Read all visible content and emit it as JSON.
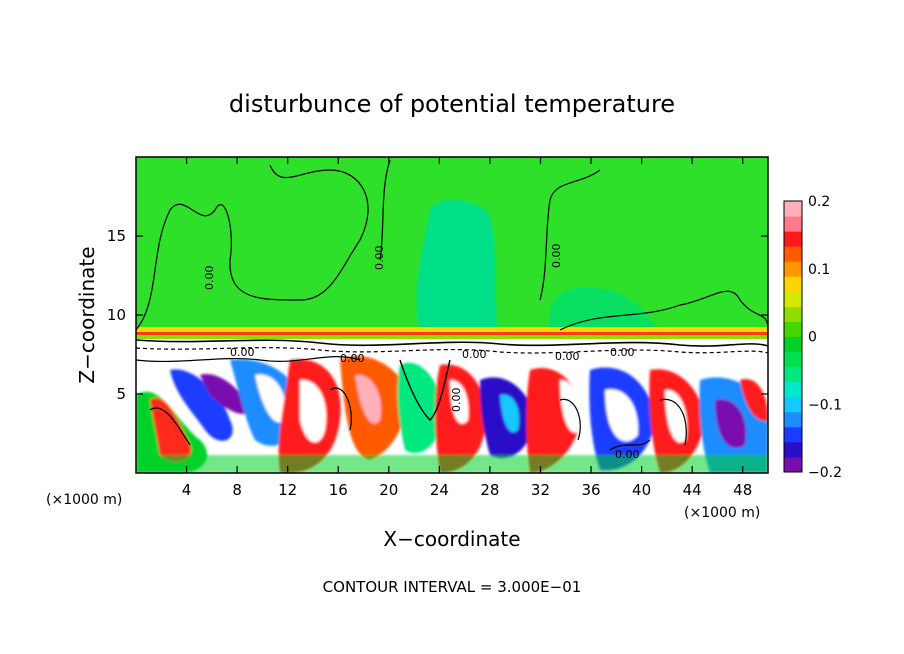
{
  "chart_data": {
    "type": "heatmap",
    "title": "disturbunce of potential temperature",
    "xlabel": "X−coordinate",
    "ylabel": "Z−coordinate",
    "x_unit": "(×1000 m)",
    "z_unit": "(×1000 m)",
    "xlim": [
      0,
      50
    ],
    "ylim": [
      0,
      20
    ],
    "x_ticks": [
      4,
      8,
      12,
      16,
      20,
      24,
      28,
      32,
      36,
      40,
      44,
      48
    ],
    "y_ticks": [
      5,
      10,
      15
    ],
    "contour_note": "CONTOUR INTERVAL = 3.000E−01",
    "contour_labels": [
      "0.00",
      "0.00",
      "0.00",
      "0.00",
      "0.00",
      "0.00",
      "0.00",
      "0.00",
      "0.00",
      "0.00"
    ],
    "colorbar": {
      "range": [
        -0.2,
        0.2
      ],
      "tick_labels": [
        "0.2",
        "0.1",
        "0",
        "−0.1",
        "−0.2"
      ],
      "tick_values": [
        0.2,
        0.1,
        0,
        -0.1,
        -0.2
      ],
      "colors": [
        "#7a0dae",
        "#2a0fc8",
        "#1a3cff",
        "#1e8cff",
        "#15c8ff",
        "#00e8c8",
        "#00e880",
        "#00e050",
        "#00d22a",
        "#43d600",
        "#8ede00",
        "#d6e800",
        "#ffd500",
        "#ff9800",
        "#ff5a00",
        "#ff1a1a",
        "#ff7a8a",
        "#ffb0b8"
      ]
    },
    "field_regions": {
      "upper_layer": "near-zero disturbance (green), slight negative plume near x=22–28",
      "inversion_z": 9,
      "lower_layer": "turbulent mixed layer with values spanning −0.2 to 0.2 and beyond"
    },
    "grid": false
  }
}
